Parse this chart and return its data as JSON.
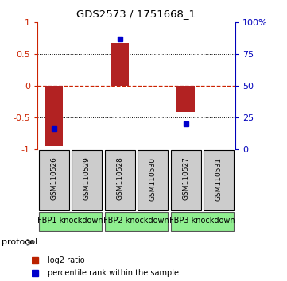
{
  "title": "GDS2573 / 1751668_1",
  "samples": [
    "GSM110526",
    "GSM110529",
    "GSM110528",
    "GSM110530",
    "GSM110527",
    "GSM110531"
  ],
  "log2_ratios": [
    -0.95,
    0.0,
    0.68,
    0.0,
    -0.42,
    0.0
  ],
  "percentile_ranks_raw": [
    0.16,
    null,
    0.87,
    null,
    0.2,
    null
  ],
  "groups": [
    {
      "label": "FBP1 knockdown",
      "start": 0,
      "end": 2,
      "color": "#90EE90"
    },
    {
      "label": "FBP2 knockdown",
      "start": 2,
      "end": 4,
      "color": "#90EE90"
    },
    {
      "label": "FBP3 knockdown",
      "start": 4,
      "end": 6,
      "color": "#90EE90"
    }
  ],
  "bar_color": "#B22222",
  "square_color": "#0000CC",
  "ylim_left": [
    -1.0,
    1.0
  ],
  "ylim_right": [
    0,
    100
  ],
  "yticks_left": [
    -1,
    -0.5,
    0,
    0.5,
    1
  ],
  "ytick_labels_left": [
    "-1",
    "-0.5",
    "0",
    "0.5",
    "1"
  ],
  "yticks_right": [
    0,
    25,
    50,
    75,
    100
  ],
  "ytick_labels_right": [
    "0",
    "25",
    "50",
    "75",
    "100%"
  ],
  "left_tick_color": "#CC2200",
  "right_tick_color": "#0000BB",
  "zero_line_color": "#CC2200",
  "grid_color": "#555555",
  "protocol_label": "protocol",
  "legend_items": [
    {
      "label": "log2 ratio",
      "color": "#BB2200"
    },
    {
      "label": "percentile rank within the sample",
      "color": "#0000CC"
    }
  ],
  "sample_box_color": "#CCCCCC",
  "figsize": [
    3.61,
    3.54
  ],
  "dpi": 100
}
